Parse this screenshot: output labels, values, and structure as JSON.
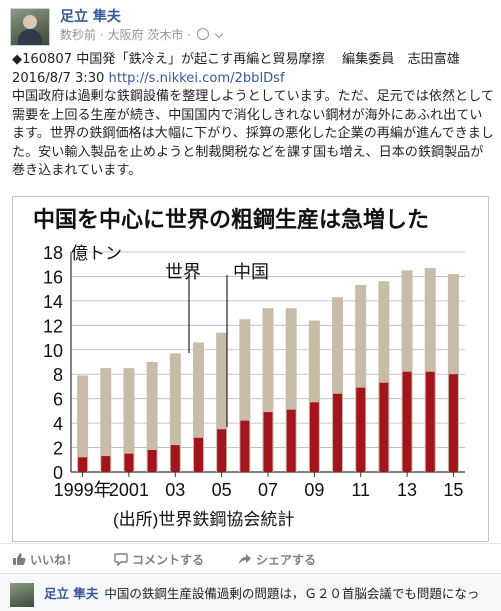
{
  "post": {
    "author": "足立 隼夫",
    "time": "数秒前",
    "location": "大阪府 茨木市",
    "separator": "·",
    "text_lines": [
      "◆160807 中国発「鉄冷え」が起こす再編と貿易摩擦　 編集委員　志田富雄",
      "2016/8/7 3:30 ",
      "中国政府は過剰な鉄鋼設備を整理しようとしています。ただ、足元では依然として需要を上回る生産が続き、中国国内で消化しきれない鋼材が海外にあふれ出ています。世界の鉄鋼価格は大幅に下がり、採算の悪化した企業の再編が進んできました。安い輸入製品を止めようと制裁関税などを課す国も増え、日本の鉄鋼製品が巻き込まれています。"
    ],
    "link": "http://s.nikkei.com/2bblDsf"
  },
  "chart_data": {
    "type": "bar",
    "title": "中国を中心に世界の粗鋼生産は急増した",
    "ylabel": "億トン",
    "ylim": [
      0,
      18
    ],
    "yticks": [
      0,
      2,
      4,
      6,
      8,
      10,
      12,
      14,
      16,
      18
    ],
    "x": [
      1999,
      2000,
      2001,
      2002,
      2003,
      2004,
      2005,
      2006,
      2007,
      2008,
      2009,
      2010,
      2011,
      2012,
      2013,
      2014,
      2015
    ],
    "xtick_labels": [
      "1999年",
      "2001",
      "03",
      "05",
      "07",
      "09",
      "11",
      "13",
      "15"
    ],
    "series": [
      {
        "name": "世界",
        "color": "#c8bca8",
        "values": [
          7.9,
          8.5,
          8.5,
          9.0,
          9.7,
          10.6,
          11.4,
          12.5,
          13.4,
          13.4,
          12.4,
          14.3,
          15.3,
          15.6,
          16.5,
          16.7,
          16.2
        ]
      },
      {
        "name": "中国",
        "color": "#a3141c",
        "values": [
          1.2,
          1.3,
          1.5,
          1.8,
          2.2,
          2.8,
          3.5,
          4.2,
          4.9,
          5.1,
          5.7,
          6.4,
          6.9,
          7.3,
          8.2,
          8.2,
          8.0
        ]
      }
    ],
    "source": "(出所)世界鉄鋼協会統計"
  },
  "actions": {
    "like": "いいね！",
    "comment": "コメントする",
    "share": "シェアする"
  },
  "comment": {
    "author": "足立 隼夫",
    "text": "中国の鉄鋼生産設備過剰の問題は，Ｇ２０首脳会議でも問題になっ"
  }
}
